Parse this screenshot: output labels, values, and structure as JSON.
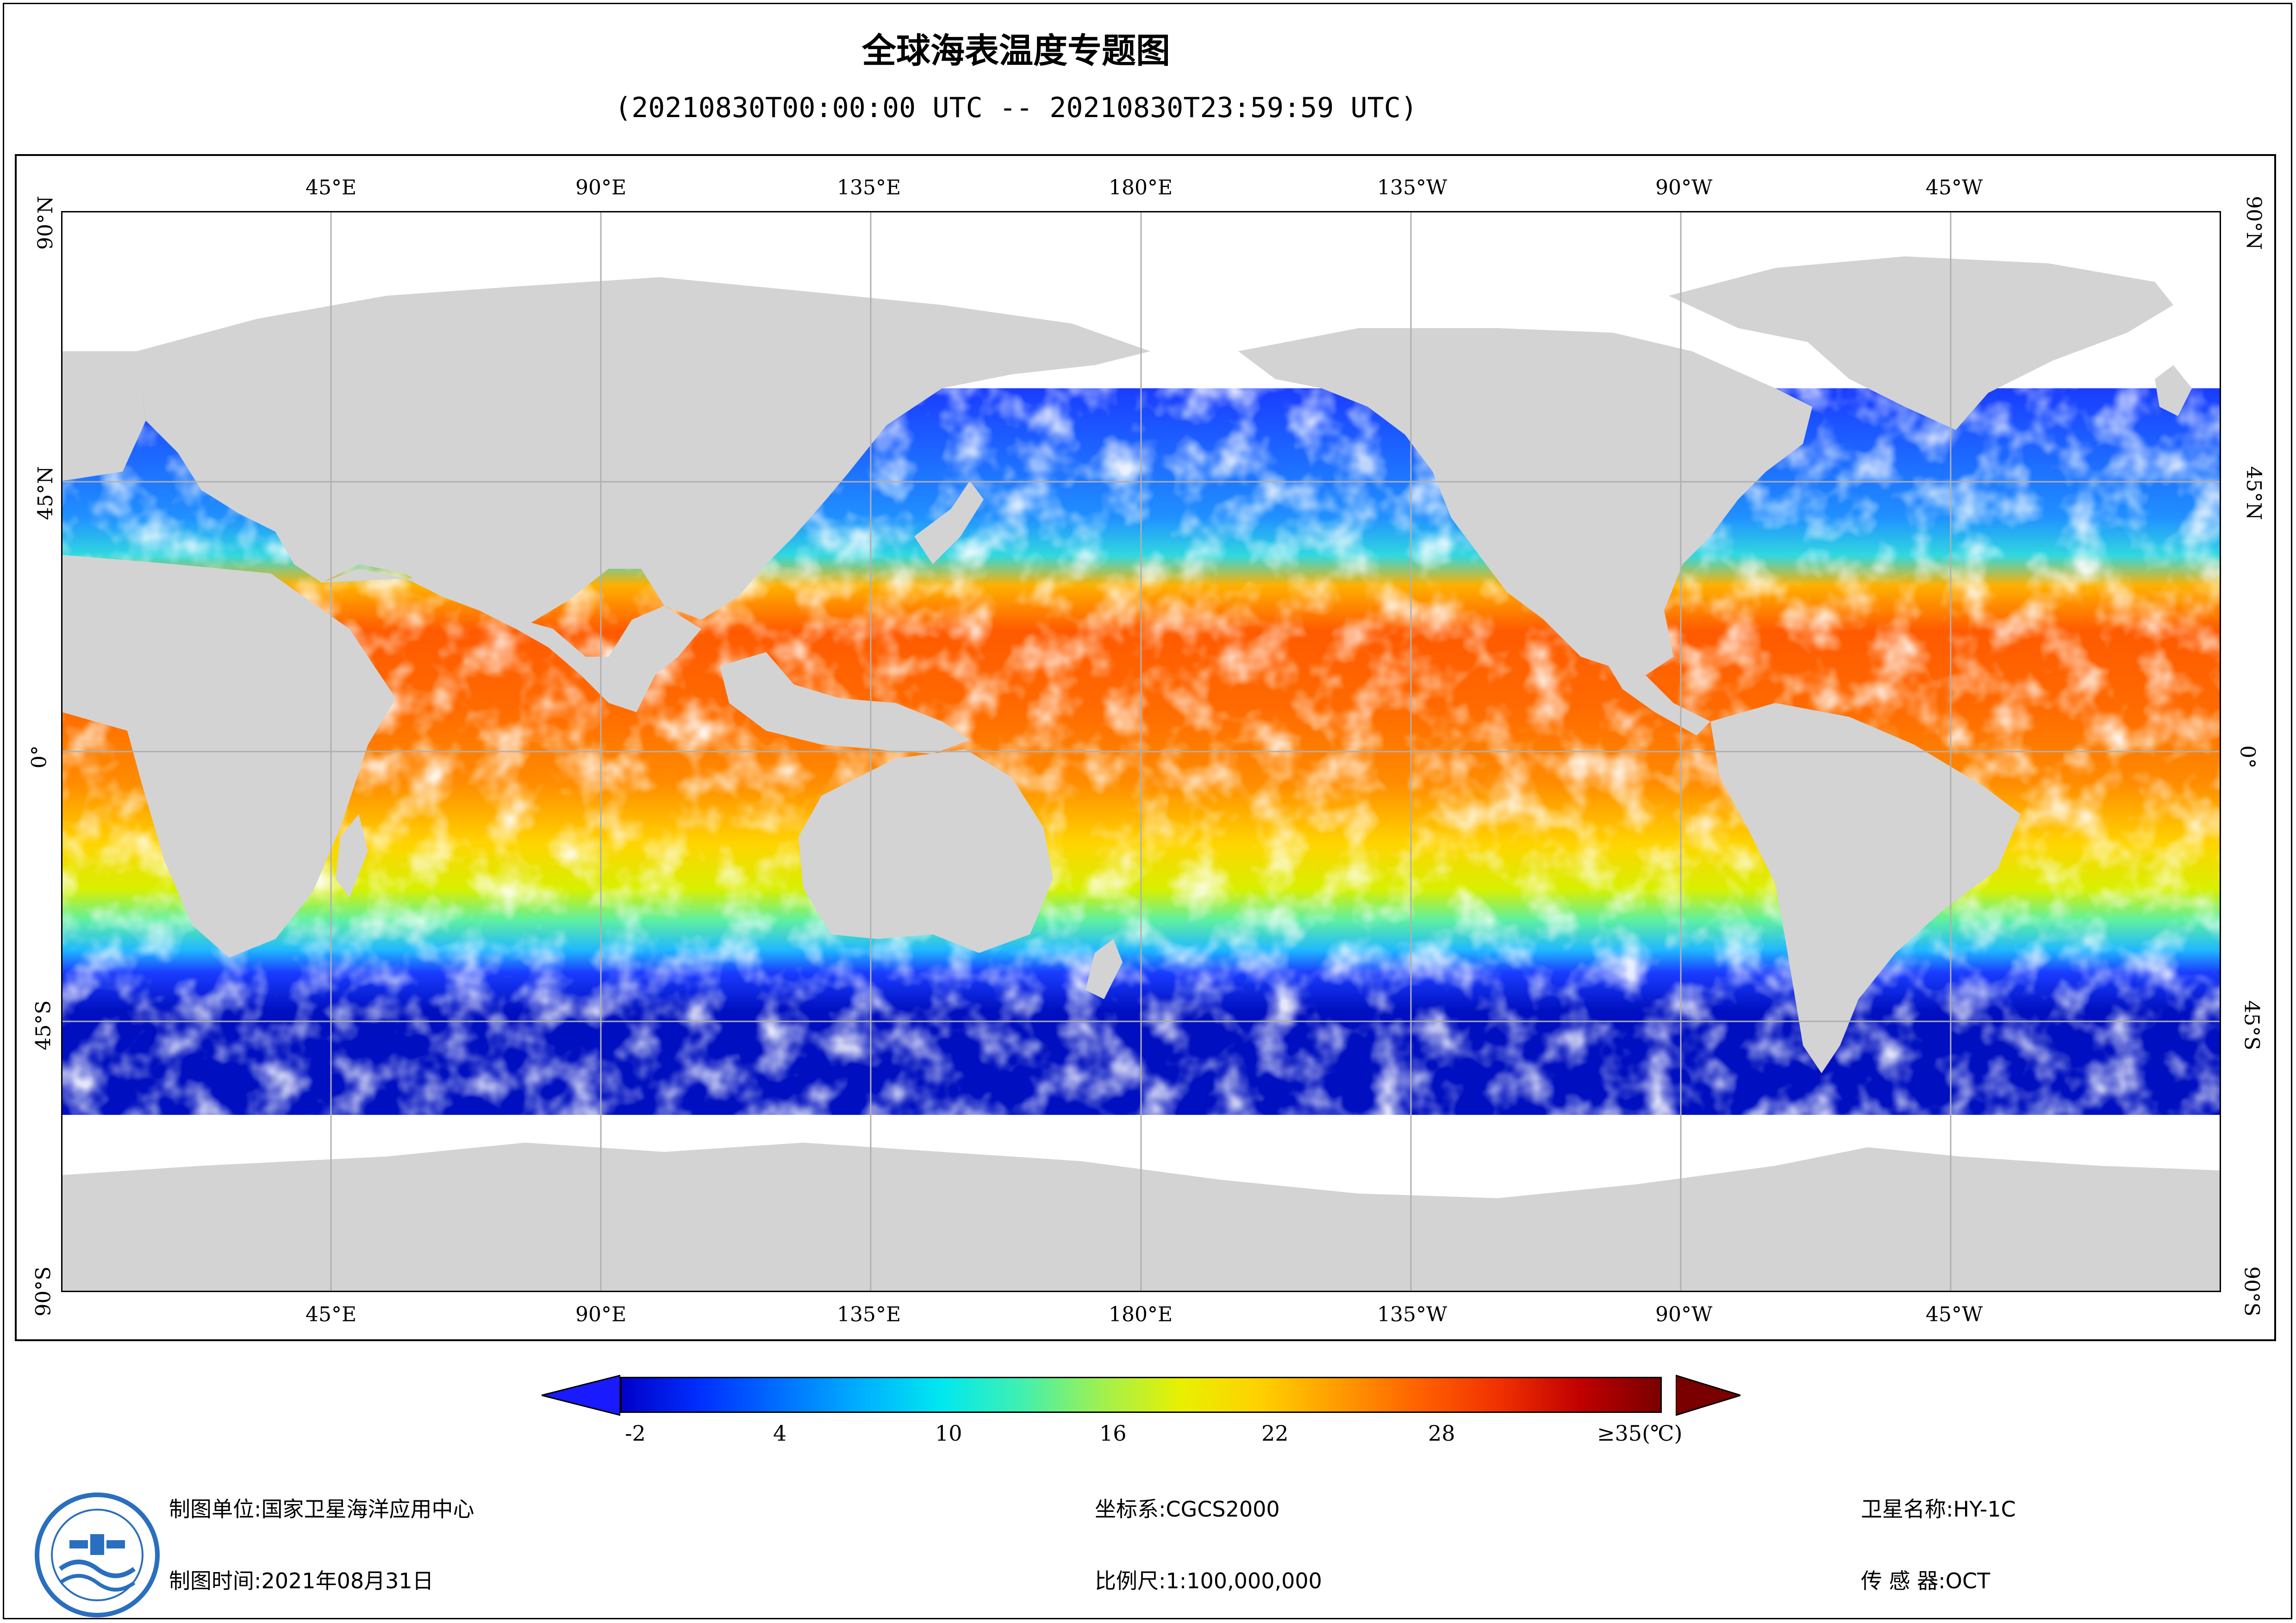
{
  "title": "全球海表温度专题图",
  "subtitle": "(20210830T00:00:00 UTC -- 20210830T23:59:59 UTC)",
  "map": {
    "top_ticks": [
      "45°E",
      "90°E",
      "135°E",
      "180°E",
      "135°W",
      "90°W",
      "45°W"
    ],
    "side_ticks": [
      "90°N",
      "45°N",
      "0°",
      "45°S",
      "90°S"
    ],
    "land_color": "#d3d3d3",
    "grid_color": "#b0b0b0"
  },
  "colorbar": {
    "labels": [
      "-2",
      "4",
      "10",
      "16",
      "22",
      "28",
      "≥35(℃)"
    ],
    "left_arrow_color": "#1a1aff",
    "right_arrow_color": "#7a0000"
  },
  "info": {
    "unit_label": "制图单位:国家卫星海洋应用中心",
    "time_label": "制图时间:2021年08月31日",
    "crs_label": "坐标系:CGCS2000",
    "scale_label": "比例尺:1:100,000,000",
    "satellite_label": "卫星名称:HY-1C",
    "sensor_label": "传 感 器:OCT"
  }
}
